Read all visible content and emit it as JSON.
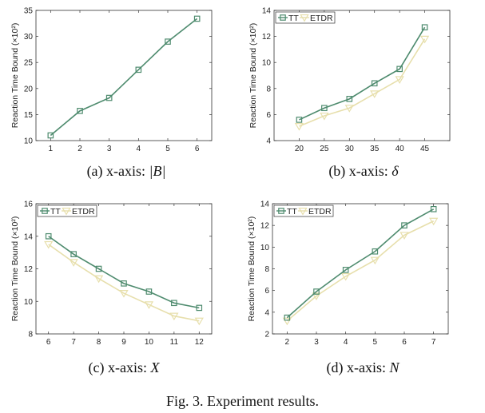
{
  "figure_caption": "Fig. 3.  Experiment results.",
  "colors": {
    "tt": "#4e8b6e",
    "etdr": "#e7dfac",
    "axis": "#333333"
  },
  "chart_data": [
    {
      "id": "a",
      "type": "line",
      "caption_prefix": "(a) x-axis: ",
      "caption_math": "|B|",
      "ylabel": "Reaction Time Bound (×10²)",
      "xlim": [
        0.5,
        6.5
      ],
      "ylim": [
        10,
        35
      ],
      "xticks": [
        1,
        2,
        3,
        4,
        5,
        6
      ],
      "yticks": [
        10,
        15,
        20,
        25,
        30,
        35
      ],
      "legend": null,
      "series": [
        {
          "key": "tt",
          "name": "",
          "x": [
            1,
            2,
            3,
            4,
            5,
            6
          ],
          "values": [
            11.0,
            15.7,
            18.2,
            23.6,
            29.0,
            33.4
          ]
        }
      ]
    },
    {
      "id": "b",
      "type": "line",
      "caption_prefix": "(b) x-axis: ",
      "caption_math": "δ",
      "ylabel": "Reaction Time Bound (×10²)",
      "xlim": [
        15,
        50
      ],
      "ylim": [
        4,
        14
      ],
      "xticks": [
        20,
        25,
        30,
        35,
        40,
        45
      ],
      "yticks": [
        4,
        6,
        8,
        10,
        12,
        14
      ],
      "legend": "top-left",
      "series": [
        {
          "key": "tt",
          "name": "TT",
          "x": [
            20,
            25,
            30,
            35,
            40,
            45
          ],
          "values": [
            5.6,
            6.5,
            7.2,
            8.4,
            9.5,
            12.7
          ]
        },
        {
          "key": "etdr",
          "name": "ETDR",
          "x": [
            20,
            25,
            30,
            35,
            40,
            45
          ],
          "values": [
            5.1,
            5.9,
            6.5,
            7.6,
            8.7,
            11.8
          ]
        }
      ]
    },
    {
      "id": "c",
      "type": "line",
      "caption_prefix": "(c) x-axis: ",
      "caption_math": "X",
      "ylabel": "Reaction Time Bound (×10²)",
      "xlim": [
        5.5,
        12.5
      ],
      "ylim": [
        8,
        16
      ],
      "xticks": [
        6,
        7,
        8,
        9,
        10,
        11,
        12
      ],
      "yticks": [
        8,
        10,
        12,
        14,
        16
      ],
      "legend": "top-left",
      "series": [
        {
          "key": "tt",
          "name": "TT",
          "x": [
            6,
            7,
            8,
            9,
            10,
            11,
            12
          ],
          "values": [
            14.0,
            12.9,
            12.0,
            11.1,
            10.6,
            9.9,
            9.6
          ]
        },
        {
          "key": "etdr",
          "name": "ETDR",
          "x": [
            6,
            7,
            8,
            9,
            10,
            11,
            12
          ],
          "values": [
            13.5,
            12.4,
            11.4,
            10.5,
            9.8,
            9.1,
            8.8
          ]
        }
      ]
    },
    {
      "id": "d",
      "type": "line",
      "caption_prefix": "(d) x-axis: ",
      "caption_math": "N",
      "ylabel": "Reaction Time Bound (×10²)",
      "xlim": [
        1.5,
        7.5
      ],
      "ylim": [
        2,
        14
      ],
      "xticks": [
        2,
        3,
        4,
        5,
        6,
        7
      ],
      "yticks": [
        2,
        4,
        6,
        8,
        10,
        12,
        14
      ],
      "legend": "top-left",
      "series": [
        {
          "key": "tt",
          "name": "TT",
          "x": [
            2,
            3,
            4,
            5,
            6,
            7
          ],
          "values": [
            3.5,
            5.9,
            7.9,
            9.6,
            12.0,
            13.5
          ]
        },
        {
          "key": "etdr",
          "name": "ETDR",
          "x": [
            2,
            3,
            4,
            5,
            6,
            7
          ],
          "values": [
            3.2,
            5.5,
            7.3,
            8.8,
            11.1,
            12.4
          ]
        }
      ]
    }
  ]
}
